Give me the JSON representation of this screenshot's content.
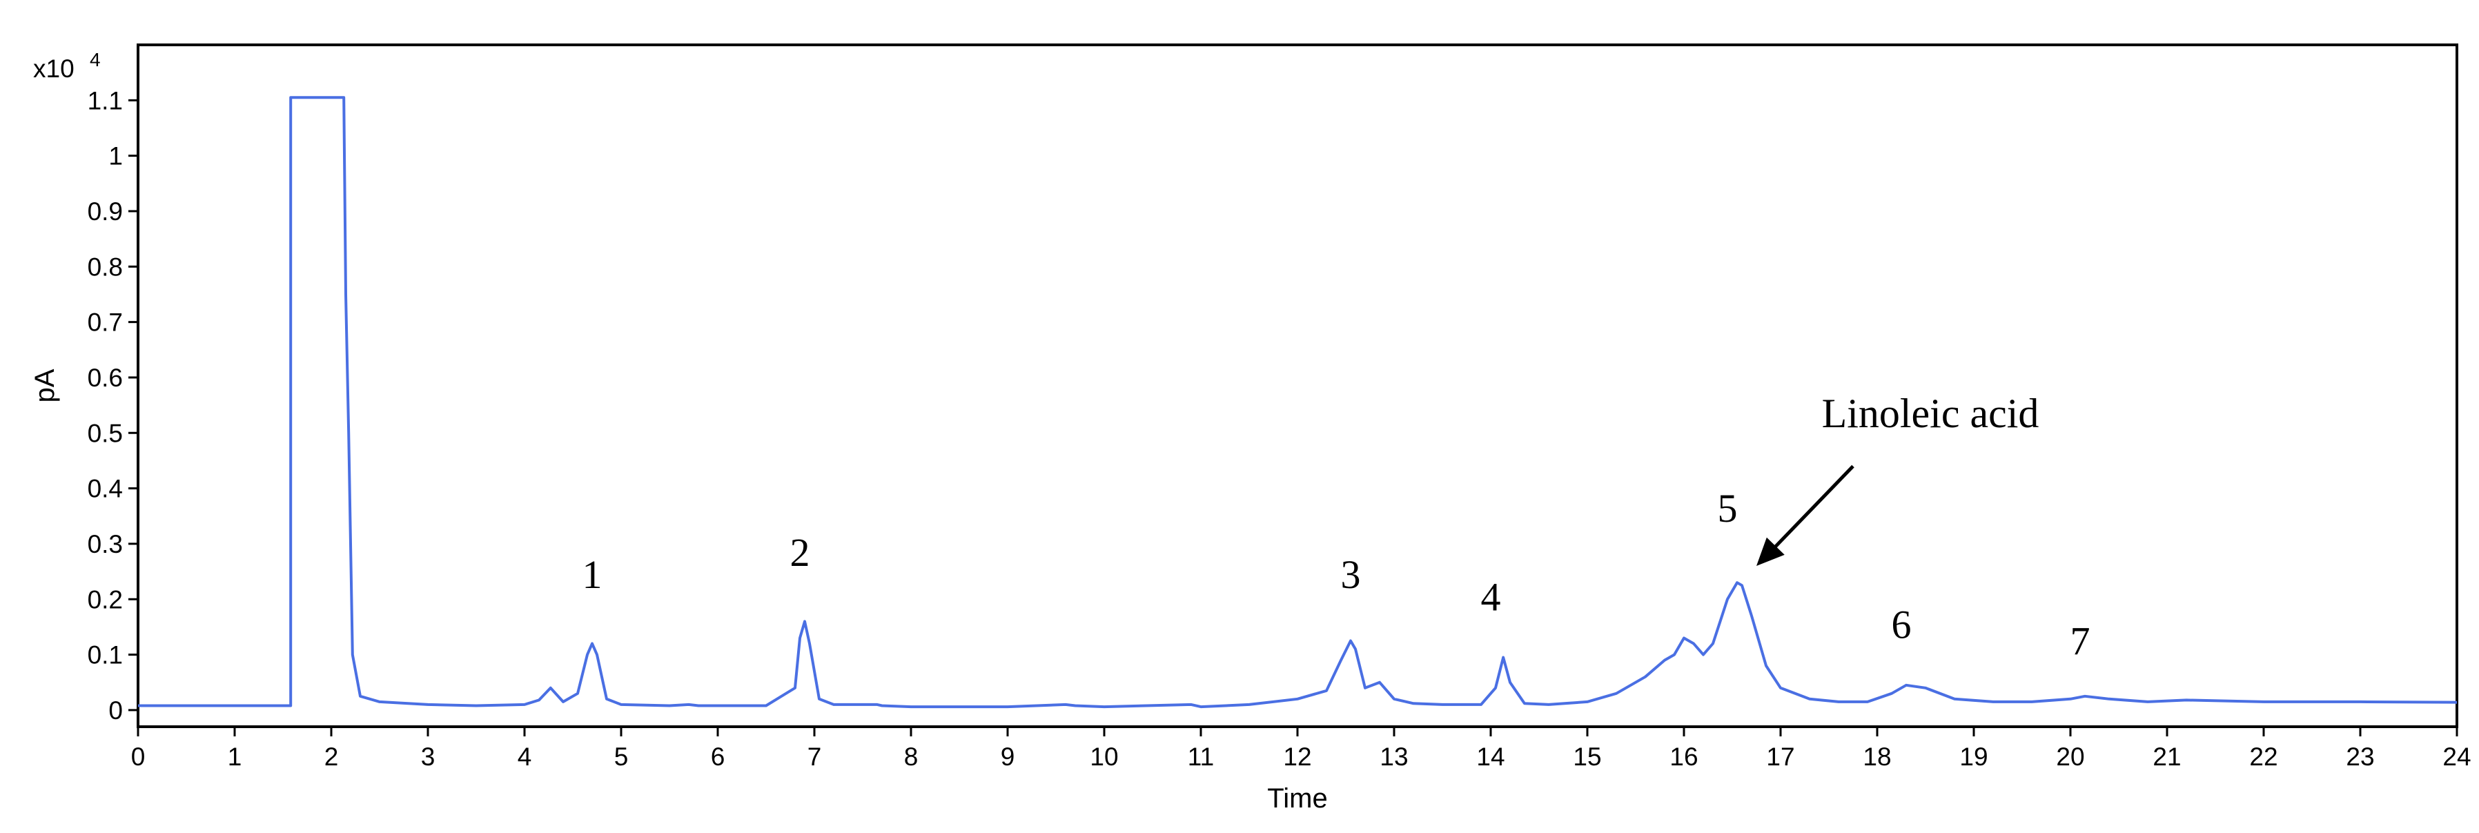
{
  "chart_data": {
    "type": "line",
    "title": "",
    "xlabel": "Time",
    "ylabel": "pA",
    "y_multiplier": "x10",
    "y_multiplier_exp": "4",
    "xlim": [
      0,
      24
    ],
    "ylim": [
      -0.03,
      1.2
    ],
    "x_ticks": [
      0,
      1,
      2,
      3,
      4,
      5,
      6,
      7,
      8,
      9,
      10,
      11,
      12,
      13,
      14,
      15,
      16,
      17,
      18,
      19,
      20,
      21,
      22,
      23,
      24
    ],
    "y_ticks": [
      0,
      0.1,
      0.2,
      0.3,
      0.4,
      0.5,
      0.6,
      0.7,
      0.8,
      0.9,
      1,
      1.1
    ],
    "y_tick_labels": [
      "0",
      "0.1",
      "0.2",
      "0.3",
      "0.4",
      "0.5",
      "0.6",
      "0.7",
      "0.8",
      "0.9",
      "1",
      "1.1"
    ],
    "grid": false,
    "line_color": "#4a6fe3",
    "series": [
      {
        "x": [
          0,
          1.58,
          1.58,
          2.13,
          2.15,
          2.18,
          2.22,
          2.3,
          2.5,
          3.0,
          3.5,
          4.0,
          4.15,
          4.27,
          4.4,
          4.55,
          4.65,
          4.7,
          4.75,
          4.85,
          5.0,
          5.5,
          5.7,
          5.8,
          6.5,
          6.8,
          6.85,
          6.9,
          6.95,
          7.05,
          7.2,
          7.65,
          7.7,
          8.0,
          9.0,
          9.6,
          9.7,
          10.0,
          10.9,
          11.0,
          11.5,
          12.0,
          12.3,
          12.45,
          12.55,
          12.6,
          12.7,
          12.85,
          13.0,
          13.2,
          13.5,
          13.9,
          14.05,
          14.13,
          14.2,
          14.35,
          14.6,
          15.0,
          15.3,
          15.6,
          15.8,
          15.9,
          16.0,
          16.1,
          16.2,
          16.3,
          16.45,
          16.55,
          16.6,
          16.7,
          16.85,
          17.0,
          17.3,
          17.6,
          17.9,
          18.15,
          18.3,
          18.5,
          18.8,
          19.2,
          19.6,
          20.0,
          20.15,
          20.4,
          20.8,
          21.2,
          22.0,
          23.0,
          24.0
        ],
        "y": [
          0.008,
          0.008,
          1.105,
          1.105,
          0.75,
          0.5,
          0.1,
          0.025,
          0.015,
          0.01,
          0.008,
          0.01,
          0.018,
          0.04,
          0.015,
          0.03,
          0.1,
          0.12,
          0.1,
          0.02,
          0.01,
          0.008,
          0.01,
          0.008,
          0.008,
          0.04,
          0.13,
          0.16,
          0.12,
          0.02,
          0.01,
          0.01,
          0.008,
          0.006,
          0.006,
          0.01,
          0.008,
          0.006,
          0.01,
          0.006,
          0.01,
          0.02,
          0.035,
          0.09,
          0.125,
          0.11,
          0.04,
          0.05,
          0.02,
          0.012,
          0.01,
          0.01,
          0.04,
          0.095,
          0.05,
          0.012,
          0.01,
          0.015,
          0.03,
          0.06,
          0.09,
          0.1,
          0.13,
          0.12,
          0.1,
          0.12,
          0.2,
          0.23,
          0.225,
          0.17,
          0.08,
          0.04,
          0.02,
          0.015,
          0.015,
          0.03,
          0.045,
          0.04,
          0.02,
          0.015,
          0.015,
          0.02,
          0.025,
          0.02,
          0.015,
          0.018,
          0.015,
          0.015,
          0.014
        ]
      }
    ],
    "annotations": [
      {
        "text": "1",
        "x": 4.7,
        "y": 0.22
      },
      {
        "text": "2",
        "x": 6.85,
        "y": 0.26
      },
      {
        "text": "3",
        "x": 12.55,
        "y": 0.22
      },
      {
        "text": "4",
        "x": 14.0,
        "y": 0.18
      },
      {
        "text": "5",
        "x": 16.45,
        "y": 0.34
      },
      {
        "text": "6",
        "x": 18.25,
        "y": 0.13
      },
      {
        "text": "7",
        "x": 20.1,
        "y": 0.1
      }
    ],
    "arrow_annotation": {
      "text": "Linoleic acid",
      "text_x": 18.55,
      "text_y": 0.51,
      "tip_x": 16.75,
      "tip_y": 0.26,
      "tail_x": 17.75,
      "tail_y": 0.44
    }
  }
}
